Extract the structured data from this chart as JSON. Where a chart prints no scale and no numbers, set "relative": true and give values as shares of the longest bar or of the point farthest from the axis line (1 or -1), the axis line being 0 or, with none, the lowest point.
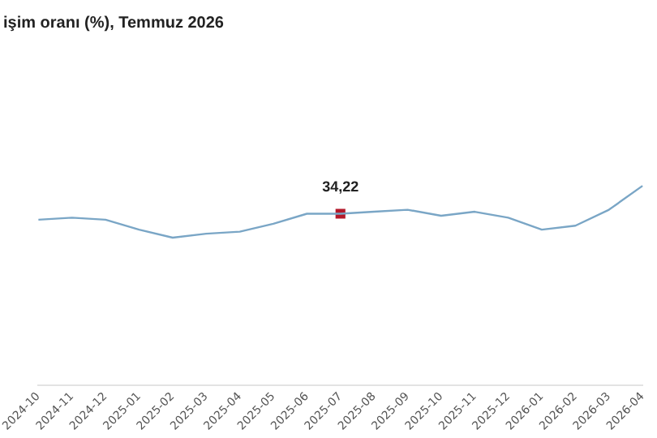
{
  "chart_data": {
    "type": "line",
    "title": "işim oranı (%), Temmuz 2026",
    "relative": true,
    "categories": [
      "2024-10",
      "2024-11",
      "2024-12",
      "2025-01",
      "2025-02",
      "2025-03",
      "2025-04",
      "2025-05",
      "2025-06",
      "2025-07",
      "2025-08",
      "2025-09",
      "2025-10",
      "2025-11",
      "2025-12",
      "2026-01",
      "2026-02",
      "2026-03",
      "2026-04"
    ],
    "tick_labels": "x",
    "series": [
      {
        "type": "line",
        "color": "#7aa6c6",
        "marker": "none",
        "values": [
          0.83,
          0.84,
          0.83,
          0.78,
          0.74,
          0.76,
          0.77,
          0.81,
          0.86,
          0.86,
          0.87,
          0.88,
          0.85,
          0.87,
          0.84,
          0.78,
          0.8,
          0.88,
          1
        ]
      },
      {
        "type": "scatter",
        "color": "#b3192b",
        "marker": "square",
        "values": [
          null,
          null,
          null,
          null,
          null,
          null,
          null,
          null,
          null,
          0.86,
          null,
          null,
          null,
          null,
          null,
          null,
          null,
          null,
          null
        ]
      }
    ],
    "annotations": [
      {
        "text": "34,22",
        "x": "2025-07",
        "y": 0.86
      }
    ],
    "grid": false,
    "legend": false
  }
}
